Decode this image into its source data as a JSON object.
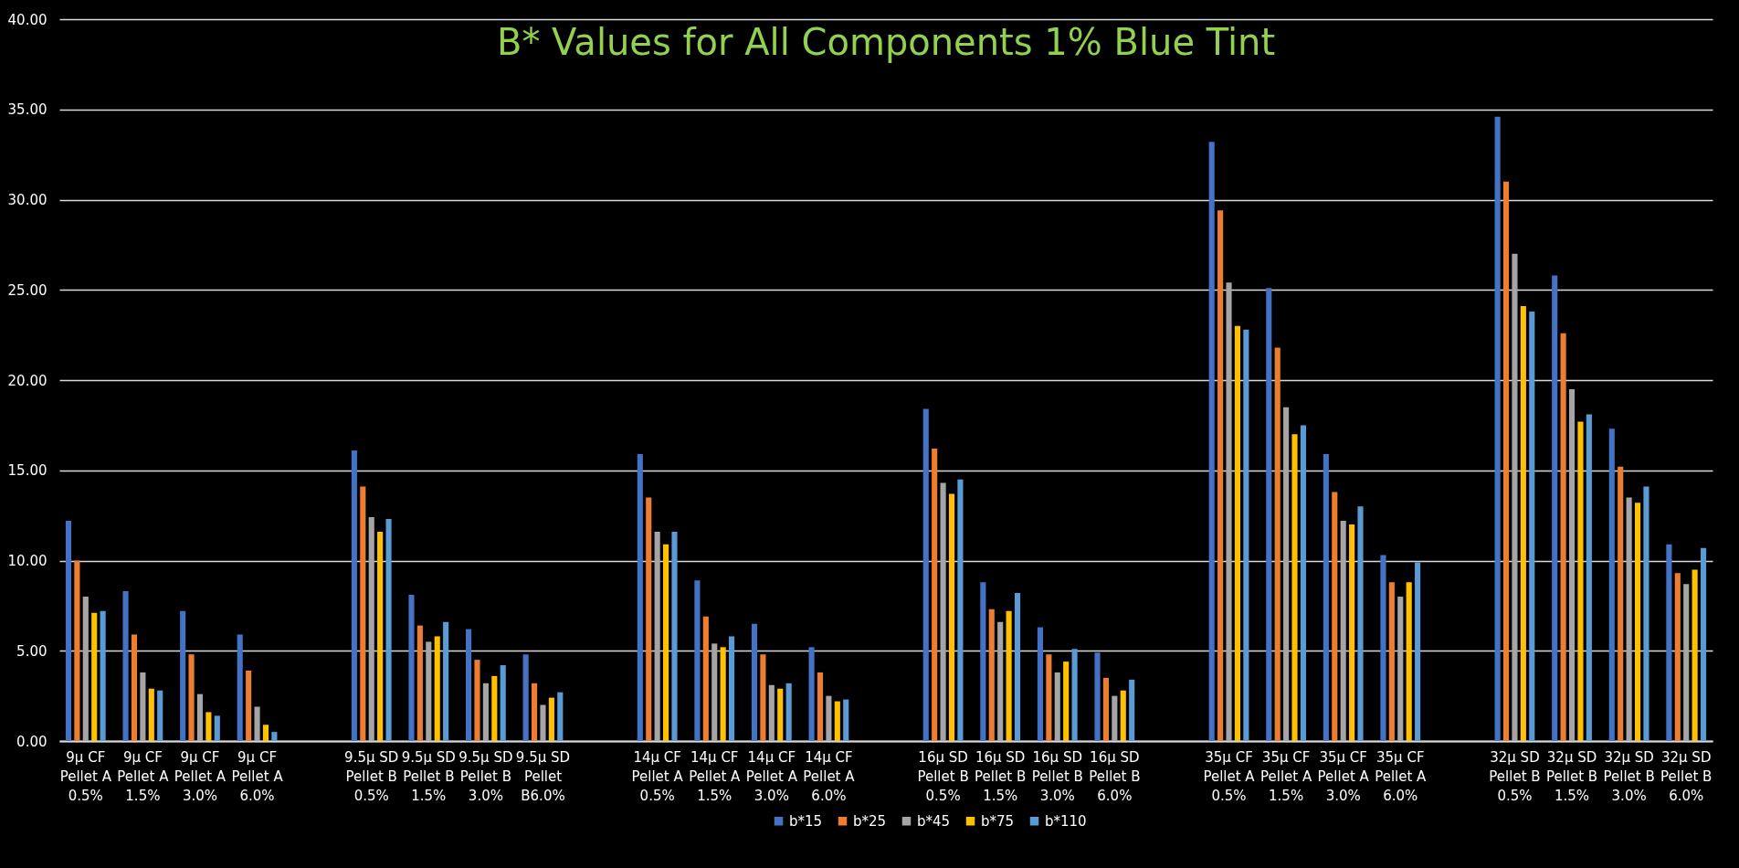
{
  "chart_data": {
    "type": "bar",
    "title": "B* Values for All Components 1% Blue Tint",
    "categories": [
      "9µ CF Pellet A 0.5%",
      "9µ CF Pellet A 1.5%",
      "9µ  CF Pellet A 3.0%",
      "9µ CF Pellet A 6.0%",
      null,
      "9.5µ SD Pellet B 0.5%",
      "9.5µ SD Pellet B 1.5%",
      "9.5µ SD Pellet B 3.0%",
      "9.5µ SD Pellet B6.0%",
      null,
      "14µ CF Pellet A 0.5%",
      "14µ CF Pellet A 1.5%",
      "14µ CF Pellet A 3.0%",
      "14µ CF Pellet A 6.0%",
      null,
      "16µ SD Pellet B 0.5%",
      "16µ SD Pellet B 1.5%",
      "16µ SD Pellet B 3.0%",
      "16µ SD Pellet B 6.0%",
      null,
      "35µ CF Pellet A 0.5%",
      "35µ CF Pellet A 1.5%",
      "35µ CF Pellet A 3.0%",
      "35µ CF Pellet A 6.0%",
      null,
      "32µ SD Pellet B 0.5%",
      "32µ SD Pellet B 1.5%",
      "32µ SD Pellet B 3.0%",
      "32µ SD Pellet B 6.0%"
    ],
    "series": [
      {
        "name": "b*15",
        "color": "#4472c4",
        "values": [
          12.2,
          8.3,
          7.2,
          5.9,
          null,
          16.1,
          8.1,
          6.2,
          4.8,
          null,
          15.9,
          8.9,
          6.5,
          5.2,
          null,
          18.4,
          8.8,
          6.3,
          4.9,
          null,
          33.2,
          25.1,
          15.9,
          10.3,
          null,
          34.6,
          25.8,
          17.3,
          10.9
        ]
      },
      {
        "name": "b*25",
        "color": "#ed7d31",
        "values": [
          10.0,
          5.9,
          4.8,
          3.9,
          null,
          14.1,
          6.4,
          4.5,
          3.2,
          null,
          13.5,
          6.9,
          4.8,
          3.8,
          null,
          16.2,
          7.3,
          4.8,
          3.5,
          null,
          29.4,
          21.8,
          13.8,
          8.8,
          null,
          31.0,
          22.6,
          15.2,
          9.3
        ]
      },
      {
        "name": "b*45",
        "color": "#a5a5a5",
        "values": [
          8.0,
          3.8,
          2.6,
          1.9,
          null,
          12.4,
          5.5,
          3.2,
          2.0,
          null,
          11.6,
          5.4,
          3.1,
          2.5,
          null,
          14.3,
          6.6,
          3.8,
          2.5,
          null,
          25.4,
          18.5,
          12.2,
          8.0,
          null,
          27.0,
          19.5,
          13.5,
          8.7
        ]
      },
      {
        "name": "b*75",
        "color": "#ffc000",
        "values": [
          7.1,
          2.9,
          1.6,
          0.9,
          null,
          11.6,
          5.8,
          3.6,
          2.4,
          null,
          10.9,
          5.2,
          2.9,
          2.2,
          null,
          13.7,
          7.2,
          4.4,
          2.8,
          null,
          23.0,
          17.0,
          12.0,
          8.8,
          null,
          24.1,
          17.7,
          13.2,
          9.5
        ]
      },
      {
        "name": "b*110",
        "color": "#5b9bd5",
        "values": [
          7.2,
          2.8,
          1.4,
          0.5,
          null,
          12.3,
          6.6,
          4.2,
          2.7,
          null,
          11.6,
          5.8,
          3.2,
          2.3,
          null,
          14.5,
          8.2,
          5.1,
          3.4,
          null,
          22.8,
          17.5,
          13.0,
          9.9,
          null,
          23.8,
          18.1,
          14.1,
          10.7
        ]
      }
    ],
    "ylim": [
      0,
      40
    ],
    "yticks": [
      {
        "value": 0,
        "label": "0.00"
      },
      {
        "value": 5,
        "label": "5.00"
      },
      {
        "value": 10,
        "label": "10.00"
      },
      {
        "value": 15,
        "label": "15.00"
      },
      {
        "value": 20,
        "label": "20.00"
      },
      {
        "value": 25,
        "label": "25.00"
      },
      {
        "value": 30,
        "label": "30.00"
      },
      {
        "value": 35,
        "label": "35.00"
      },
      {
        "value": 40,
        "label": "40.00"
      }
    ],
    "grid": "y",
    "legend": "bottom"
  }
}
